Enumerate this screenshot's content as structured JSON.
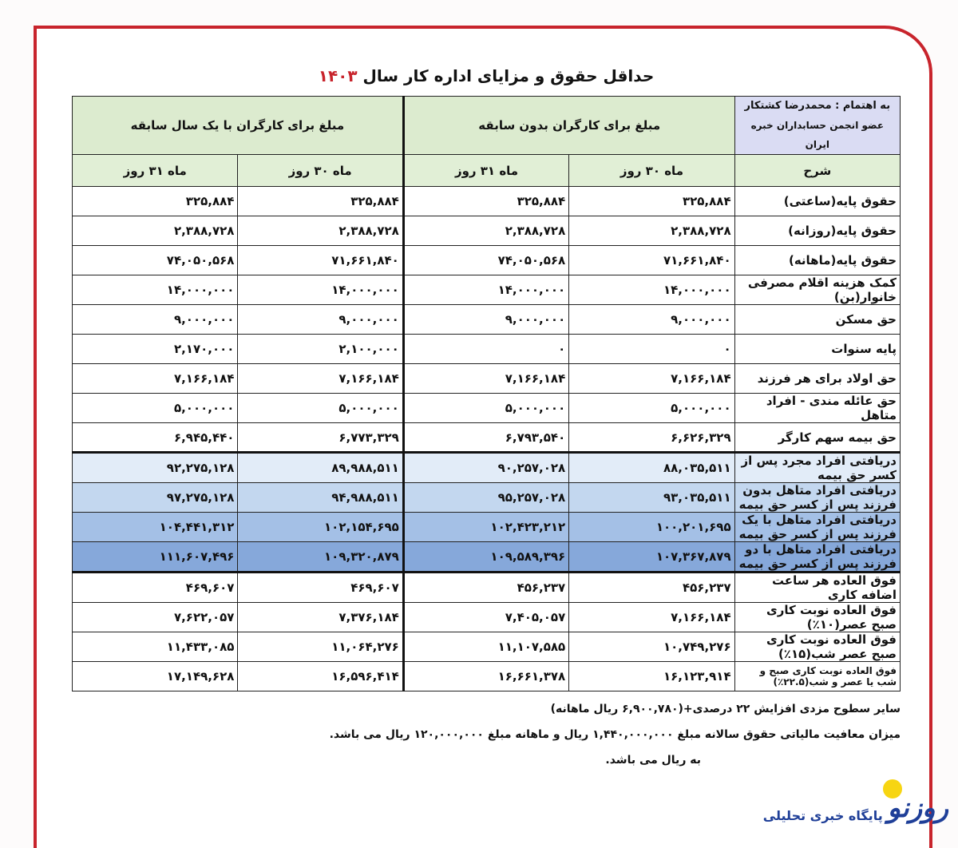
{
  "title": {
    "text": "حداقل حقوق و مزایای اداره کار سال",
    "year": "۱۴۰۳"
  },
  "header": {
    "author_line1": "به اهتمام : محمدرضا کشتکار",
    "author_line2": "عضو انجمن حسابداران خبره ایران",
    "group_no_experience": "مبلغ برای کارگران بدون سابقه",
    "group_one_year": "مبلغ برای کارگران با یک سال سابقه",
    "desc": "شرح",
    "m30": "ماه ۳۰ روز",
    "m31": "ماه ۳۱ روز"
  },
  "rows": [
    {
      "label": "حقوق پایه(ساعتی)",
      "v": [
        "۳۲۵,۸۸۴",
        "۳۲۵,۸۸۴",
        "۳۲۵,۸۸۴",
        "۳۲۵,۸۸۴"
      ]
    },
    {
      "label": "حقوق پایه(روزانه)",
      "v": [
        "۲,۳۸۸,۷۲۸",
        "۲,۳۸۸,۷۲۸",
        "۲,۳۸۸,۷۲۸",
        "۲,۳۸۸,۷۲۸"
      ]
    },
    {
      "label": "حقوق پایه(ماهانه)",
      "v": [
        "۷۱,۶۶۱,۸۴۰",
        "۷۴,۰۵۰,۵۶۸",
        "۷۱,۶۶۱,۸۴۰",
        "۷۴,۰۵۰,۵۶۸"
      ]
    },
    {
      "label": "کمک هزینه اقلام مصرفی خانوار(بن)",
      "v": [
        "۱۴,۰۰۰,۰۰۰",
        "۱۴,۰۰۰,۰۰۰",
        "۱۴,۰۰۰,۰۰۰",
        "۱۴,۰۰۰,۰۰۰"
      ]
    },
    {
      "label": "حق مسکن",
      "v": [
        "۹,۰۰۰,۰۰۰",
        "۹,۰۰۰,۰۰۰",
        "۹,۰۰۰,۰۰۰",
        "۹,۰۰۰,۰۰۰"
      ]
    },
    {
      "label": "پایه سنوات",
      "v": [
        "۰",
        "۰",
        "۲,۱۰۰,۰۰۰",
        "۲,۱۷۰,۰۰۰"
      ]
    },
    {
      "label": "حق اولاد برای هر فرزند",
      "v": [
        "۷,۱۶۶,۱۸۴",
        "۷,۱۶۶,۱۸۴",
        "۷,۱۶۶,۱۸۴",
        "۷,۱۶۶,۱۸۴"
      ]
    },
    {
      "label": "حق عائله مندی - افراد متاهل",
      "v": [
        "۵,۰۰۰,۰۰۰",
        "۵,۰۰۰,۰۰۰",
        "۵,۰۰۰,۰۰۰",
        "۵,۰۰۰,۰۰۰"
      ]
    },
    {
      "label": "حق بیمه سهم کارگر",
      "v": [
        "۶,۶۲۶,۳۲۹",
        "۶,۷۹۳,۵۴۰",
        "۶,۷۷۳,۳۲۹",
        "۶,۹۴۵,۴۴۰"
      ]
    },
    {
      "label": "دریافتی افراد مجرد پس از کسر حق بیمه",
      "v": [
        "۸۸,۰۳۵,۵۱۱",
        "۹۰,۲۵۷,۰۲۸",
        "۸۹,۹۸۸,۵۱۱",
        "۹۲,۲۷۵,۱۲۸"
      ]
    },
    {
      "label": "دریافتی افراد متاهل بدون فرزند پس از کسر حق بیمه",
      "v": [
        "۹۳,۰۳۵,۵۱۱",
        "۹۵,۲۵۷,۰۲۸",
        "۹۴,۹۸۸,۵۱۱",
        "۹۷,۲۷۵,۱۲۸"
      ]
    },
    {
      "label": "دریافتی افراد متاهل با یک فرزند پس از کسر حق بیمه",
      "v": [
        "۱۰۰,۲۰۱,۶۹۵",
        "۱۰۲,۴۲۳,۲۱۲",
        "۱۰۲,۱۵۴,۶۹۵",
        "۱۰۴,۴۴۱,۳۱۲"
      ]
    },
    {
      "label": "دریافتی افراد متاهل با دو فرزند پس از کسر حق بیمه",
      "v": [
        "۱۰۷,۳۶۷,۸۷۹",
        "۱۰۹,۵۸۹,۳۹۶",
        "۱۰۹,۳۲۰,۸۷۹",
        "۱۱۱,۶۰۷,۴۹۶"
      ]
    },
    {
      "label": "فوق العاده هر ساعت اضافه کاری",
      "v": [
        "۴۵۶,۲۳۷",
        "۴۵۶,۲۳۷",
        "۴۶۹,۶۰۷",
        "۴۶۹,۶۰۷"
      ]
    },
    {
      "label": "فوق العاده نوبت کاری صبح عصر(۱۰٪)",
      "v": [
        "۷,۱۶۶,۱۸۴",
        "۷,۴۰۵,۰۵۷",
        "۷,۳۷۶,۱۸۴",
        "۷,۶۲۲,۰۵۷"
      ]
    },
    {
      "label": "فوق العاده نوبت کاری صبح عصر شب(۱۵٪)",
      "v": [
        "۱۰,۷۴۹,۲۷۶",
        "۱۱,۱۰۷,۵۸۵",
        "۱۱,۰۶۴,۲۷۶",
        "۱۱,۴۳۳,۰۸۵"
      ]
    },
    {
      "label": "فوق العاده نوبت کاری صبح و شب یا عصر و شب(۲۲.۵٪)",
      "v": [
        "۱۶,۱۲۳,۹۱۴",
        "۱۶,۶۶۱,۳۷۸",
        "۱۶,۵۹۶,۴۱۴",
        "۱۷,۱۴۹,۶۲۸"
      ]
    }
  ],
  "notes": [
    "سایر سطوح مزدی افزایش ۲۲ درصدی+(۶,۹۰۰,۷۸۰ ریال ماهانه)",
    "میزان معافیت مالیاتی حقوق سالانه مبلغ ۱,۴۴۰,۰۰۰,۰۰۰ ریال و ماهانه مبلغ ۱۲۰,۰۰۰,۰۰۰ ریال می باشد.",
    "به ریال می باشد."
  ],
  "logo": {
    "mark": "روزنو",
    "tagline": "پایگاه خبری تحلیلی"
  },
  "colors": {
    "frame": "#c8242c",
    "blue_row_1": "#e2ecf8",
    "blue_row_4": "#86a8da",
    "header_green": "#dcebcf",
    "logo_blue": "#1f3f98"
  }
}
